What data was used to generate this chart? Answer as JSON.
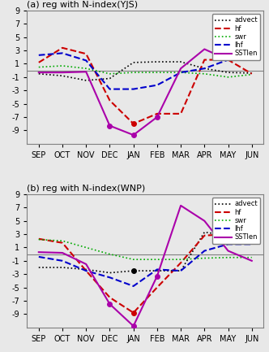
{
  "months": [
    "SEP",
    "OCT",
    "NOV",
    "DEC",
    "JAN",
    "FEB",
    "MAR",
    "APR",
    "MAY",
    "JUN"
  ],
  "panel_a": {
    "title": "(a) reg with N-index(YJS)",
    "advect": [
      -0.5,
      -0.8,
      -1.5,
      -1.2,
      1.2,
      1.3,
      1.3,
      0.3,
      -0.3,
      -0.4
    ],
    "hf": [
      1.2,
      3.4,
      2.5,
      -4.5,
      -8.0,
      -6.5,
      -6.5,
      1.6,
      1.6,
      -0.5
    ],
    "swr": [
      0.5,
      0.7,
      0.3,
      -0.5,
      -0.3,
      -0.3,
      -0.3,
      -0.5,
      -1.0,
      -0.6
    ],
    "lhf": [
      2.3,
      2.6,
      1.5,
      -2.8,
      -2.8,
      -2.2,
      -0.3,
      0.3,
      1.6,
      1.6
    ],
    "SSTlen": [
      -0.3,
      -0.3,
      -0.2,
      -8.3,
      -9.7,
      -7.0,
      0.3,
      3.2,
      1.6,
      1.6
    ],
    "dot_months_hf": [
      4
    ],
    "dot_months_SSTlen": [
      3,
      4,
      5
    ]
  },
  "panel_b": {
    "title": "(b) reg with N-index(WNP)",
    "advect": [
      -2.0,
      -2.0,
      -2.3,
      -2.8,
      -2.5,
      -2.5,
      -2.5,
      3.3,
      2.8,
      2.0
    ],
    "hf": [
      2.3,
      1.7,
      -2.5,
      -6.5,
      -8.8,
      -5.0,
      -1.3,
      2.8,
      3.0,
      1.6
    ],
    "swr": [
      2.2,
      2.0,
      1.0,
      0.0,
      -0.8,
      -0.8,
      -0.8,
      -0.6,
      -0.5,
      -0.5
    ],
    "lhf": [
      -0.4,
      -1.0,
      -2.5,
      -3.5,
      -4.8,
      -2.3,
      -2.5,
      0.5,
      1.5,
      1.5
    ],
    "SSTlen": [
      0.3,
      0.2,
      -1.5,
      -7.5,
      -10.8,
      -3.3,
      7.3,
      5.0,
      0.5,
      -1.0
    ],
    "dot_months_advect": [
      4
    ],
    "dot_months_hf": [
      4
    ],
    "dot_months_SSTlen": [
      3,
      4,
      5
    ]
  },
  "colors": {
    "advect": "#000000",
    "hf": "#cc0000",
    "swr": "#00aa00",
    "lhf": "#0000cc",
    "SSTlen": "#aa00aa"
  },
  "ylim": [
    -11,
    9
  ],
  "background_color": "#e8e8e8"
}
